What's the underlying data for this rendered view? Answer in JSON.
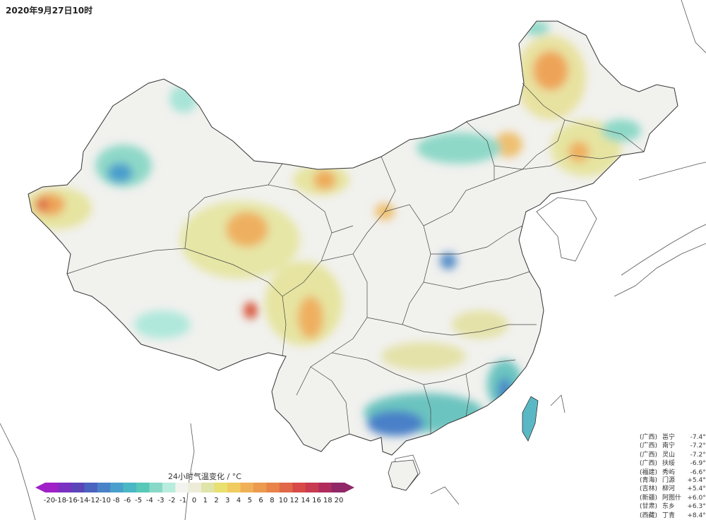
{
  "title": "2020年9月27日10时",
  "legend": {
    "title": "24小时气温变化 / °C",
    "colors": [
      "#a020c8",
      "#7a30c0",
      "#5a44b8",
      "#4a62c0",
      "#4a82c8",
      "#4aa0cc",
      "#4ab8c4",
      "#58c8b8",
      "#88d8c8",
      "#b8ecdc",
      "#f2f2ef",
      "#ececd8",
      "#e0e4a8",
      "#e8e070",
      "#f0cc60",
      "#f0b058",
      "#ec9a50",
      "#e8844a",
      "#e06848",
      "#d84a48",
      "#c83a50",
      "#b02c5c",
      "#902868"
    ],
    "ticks": [
      "-20",
      "-18",
      "-16",
      "-14",
      "-12",
      "-10",
      "-8",
      "-6",
      "-5",
      "-4",
      "-3",
      "-2",
      "-1",
      "0",
      "1",
      "2",
      "3",
      "4",
      "5",
      "6",
      "8",
      "10",
      "12",
      "14",
      "16",
      "18",
      "20"
    ]
  },
  "cooling": [
    {
      "province": "(广西)",
      "station": "邕宁",
      "value": "-7.4°C"
    },
    {
      "province": "(广西)",
      "station": "南宁",
      "value": "-7.2°C"
    },
    {
      "province": "(广西)",
      "station": "灵山",
      "value": "-7.2°C"
    },
    {
      "province": "(广西)",
      "station": "扶绥",
      "value": "-6.9°C"
    },
    {
      "province": "(福建)",
      "station": "秀屿",
      "value": "-6.6°C"
    }
  ],
  "warming": [
    {
      "province": "(青海)",
      "station": "门源",
      "value": "+5.4°C"
    },
    {
      "province": "(吉林)",
      "station": "柳河",
      "value": "+5.4°C"
    },
    {
      "province": "(新疆)",
      "station": "阿图什",
      "value": "+6.0°C"
    },
    {
      "province": "(甘肃)",
      "station": "东乡",
      "value": "+6.3°C"
    },
    {
      "province": "(西藏)",
      "station": "丁青",
      "value": "+8.4°C"
    }
  ]
}
